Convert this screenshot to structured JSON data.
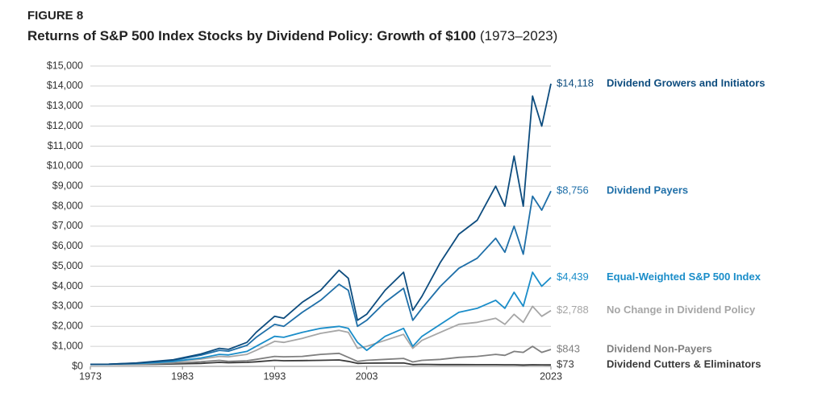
{
  "chart_data": {
    "type": "line",
    "figure_label": "FIGURE 8",
    "title": "Returns of S&P 500 Index Stocks by Dividend Policy: Growth of $100",
    "subtitle": "(1973–2023)",
    "x": [
      1973,
      1975,
      1978,
      1980,
      1982,
      1985,
      1987,
      1988,
      1990,
      1991,
      1993,
      1994,
      1996,
      1998,
      2000,
      2001,
      2002,
      2003,
      2005,
      2007,
      2008,
      2009,
      2011,
      2013,
      2015,
      2017,
      2018,
      2019,
      2020,
      2021,
      2022,
      2023
    ],
    "xlim": [
      1973,
      2023
    ],
    "xticks": [
      1973,
      1983,
      1993,
      2003,
      2023
    ],
    "ylim": [
      0,
      15000
    ],
    "yticks": [
      {
        "value": 0,
        "label": "$0"
      },
      {
        "value": 1000,
        "label": "$1,000"
      },
      {
        "value": 2000,
        "label": "$2,000"
      },
      {
        "value": 3000,
        "label": "$3,000"
      },
      {
        "value": 4000,
        "label": "$4,000"
      },
      {
        "value": 5000,
        "label": "$5,000"
      },
      {
        "value": 6000,
        "label": "$6,000"
      },
      {
        "value": 7000,
        "label": "$7,000"
      },
      {
        "value": 8000,
        "label": "$8,000"
      },
      {
        "value": 9000,
        "label": "$9,000"
      },
      {
        "value": 10000,
        "label": "$10,000"
      },
      {
        "value": 11000,
        "label": "$11,000"
      },
      {
        "value": 12000,
        "label": "$12,000"
      },
      {
        "value": 13000,
        "label": "$13,000"
      },
      {
        "value": 14000,
        "label": "$14,000"
      },
      {
        "value": 15000,
        "label": "$15,000"
      }
    ],
    "grid": true,
    "series": [
      {
        "name": "Dividend Growers and Initiators",
        "color": "#0d4c7e",
        "values": [
          100,
          110,
          170,
          250,
          330,
          620,
          900,
          850,
          1200,
          1700,
          2500,
          2400,
          3200,
          3800,
          4800,
          4400,
          2300,
          2600,
          3800,
          4700,
          2800,
          3500,
          5200,
          6600,
          7300,
          9000,
          8000,
          10500,
          8000,
          13500,
          12000,
          14118
        ],
        "value_labels": [
          null,
          null,
          null,
          null,
          null,
          null,
          null,
          null,
          null,
          null,
          null,
          null,
          null,
          null,
          null,
          null,
          null,
          null,
          null,
          null,
          null,
          null,
          null,
          null,
          null,
          null,
          null,
          null,
          null,
          null,
          null,
          "$14,118"
        ]
      },
      {
        "name": "Dividend Payers",
        "color": "#1f6fa8",
        "values": [
          100,
          108,
          160,
          230,
          300,
          560,
          800,
          760,
          1050,
          1450,
          2100,
          2000,
          2700,
          3300,
          4100,
          3800,
          2000,
          2300,
          3200,
          3900,
          2300,
          2900,
          4000,
          4900,
          5400,
          6400,
          5700,
          7000,
          5600,
          8500,
          7800,
          8756
        ],
        "value_labels": [
          null,
          null,
          null,
          null,
          null,
          null,
          null,
          null,
          null,
          null,
          null,
          null,
          null,
          null,
          null,
          null,
          null,
          null,
          null,
          null,
          null,
          null,
          null,
          null,
          null,
          null,
          null,
          null,
          null,
          null,
          null,
          "$8,756"
        ]
      },
      {
        "name": "Equal-Weighted S&P 500 Index",
        "color": "#1a8dc9",
        "values": [
          100,
          105,
          140,
          190,
          250,
          420,
          600,
          570,
          750,
          1000,
          1500,
          1450,
          1700,
          1900,
          2000,
          1900,
          1200,
          800,
          1500,
          1900,
          1000,
          1500,
          2100,
          2700,
          2900,
          3300,
          2900,
          3700,
          3000,
          4700,
          4000,
          4439
        ],
        "value_labels": [
          null,
          null,
          null,
          null,
          null,
          null,
          null,
          null,
          null,
          null,
          null,
          null,
          null,
          null,
          null,
          null,
          null,
          null,
          null,
          null,
          null,
          null,
          null,
          null,
          null,
          null,
          null,
          null,
          null,
          null,
          null,
          "$4,439"
        ]
      },
      {
        "name": "No Change in Dividend Policy",
        "color": "#a6a6a6",
        "values": [
          100,
          104,
          130,
          170,
          220,
          360,
          500,
          480,
          600,
          800,
          1250,
          1200,
          1400,
          1650,
          1800,
          1700,
          900,
          1000,
          1300,
          1600,
          900,
          1300,
          1700,
          2100,
          2200,
          2400,
          2100,
          2600,
          2200,
          3000,
          2500,
          2788
        ],
        "value_labels": [
          null,
          null,
          null,
          null,
          null,
          null,
          null,
          null,
          null,
          null,
          null,
          null,
          null,
          null,
          null,
          null,
          null,
          null,
          null,
          null,
          null,
          null,
          null,
          null,
          null,
          null,
          null,
          null,
          null,
          null,
          null,
          "$2,788"
        ]
      },
      {
        "name": "Dividend Non-Payers",
        "color": "#7f7f7f",
        "values": [
          100,
          100,
          110,
          130,
          160,
          230,
          300,
          250,
          280,
          350,
          500,
          480,
          500,
          600,
          650,
          450,
          250,
          300,
          350,
          400,
          220,
          300,
          350,
          450,
          500,
          600,
          550,
          750,
          700,
          1000,
          700,
          843
        ],
        "value_labels": [
          null,
          null,
          null,
          null,
          null,
          null,
          null,
          null,
          null,
          null,
          null,
          null,
          null,
          null,
          null,
          null,
          null,
          null,
          null,
          null,
          null,
          null,
          null,
          null,
          null,
          null,
          null,
          null,
          null,
          null,
          null,
          "$843"
        ]
      },
      {
        "name": "Dividend Cutters & Eliminators",
        "color": "#3a3a3a",
        "values": [
          100,
          95,
          100,
          110,
          120,
          150,
          200,
          180,
          200,
          230,
          300,
          280,
          290,
          300,
          320,
          250,
          150,
          160,
          170,
          170,
          90,
          100,
          90,
          90,
          85,
          85,
          80,
          80,
          70,
          80,
          75,
          73
        ],
        "value_labels": [
          null,
          null,
          null,
          null,
          null,
          null,
          null,
          null,
          null,
          null,
          null,
          null,
          null,
          null,
          null,
          null,
          null,
          null,
          null,
          null,
          null,
          null,
          null,
          null,
          null,
          null,
          null,
          null,
          null,
          null,
          null,
          "$73"
        ]
      }
    ]
  }
}
